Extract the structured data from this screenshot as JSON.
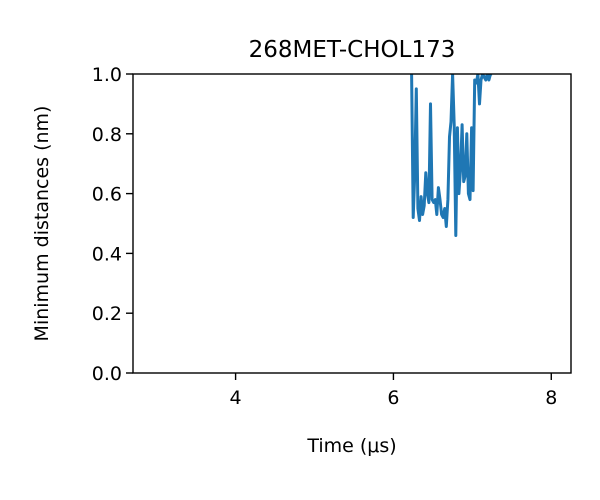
{
  "chart_data": {
    "type": "line",
    "title": "268MET-CHOL173",
    "xlabel": "Time (μs)",
    "ylabel": "Minimum distances (nm)",
    "xlim": [
      2.7,
      8.25
    ],
    "ylim": [
      0.0,
      1.0
    ],
    "xticks": [
      4,
      6,
      8
    ],
    "yticks": [
      0.0,
      0.2,
      0.4,
      0.6,
      0.8,
      1.0
    ],
    "xtick_labels": [
      "4",
      "6",
      "8"
    ],
    "ytick_labels": [
      "0.0",
      "0.2",
      "0.4",
      "0.6",
      "0.8",
      "1.0"
    ],
    "grid": false,
    "line_color": "#1f77b4",
    "series": [
      {
        "x": [
          6.23,
          6.25,
          6.27,
          6.29,
          6.31,
          6.33,
          6.35,
          6.37,
          6.39,
          6.41,
          6.43,
          6.45,
          6.47,
          6.49,
          6.51,
          6.53,
          6.55,
          6.57,
          6.59,
          6.61,
          6.63,
          6.65,
          6.67,
          6.69,
          6.71,
          6.73,
          6.75,
          6.77,
          6.79,
          6.81,
          6.83,
          6.85,
          6.87,
          6.89,
          6.91,
          6.93,
          6.95,
          6.97,
          6.99,
          7.01,
          7.03,
          7.05,
          7.07,
          7.09,
          7.11,
          7.13,
          7.15,
          7.17,
          7.19,
          7.21,
          7.23,
          7.25
        ],
        "y": [
          1.0,
          0.52,
          0.66,
          0.95,
          0.55,
          0.51,
          0.59,
          0.53,
          0.56,
          0.67,
          0.6,
          0.57,
          0.9,
          0.58,
          0.57,
          0.58,
          0.53,
          0.62,
          0.58,
          0.53,
          0.52,
          0.55,
          0.49,
          0.58,
          0.79,
          0.84,
          1.0,
          0.83,
          0.46,
          0.82,
          0.6,
          0.68,
          0.83,
          0.64,
          0.66,
          0.8,
          0.6,
          0.58,
          0.82,
          0.61,
          0.98,
          0.97,
          1.0,
          0.9,
          0.98,
          1.0,
          0.99,
          0.98,
          1.0,
          0.98,
          1.0,
          1.0
        ]
      }
    ]
  }
}
